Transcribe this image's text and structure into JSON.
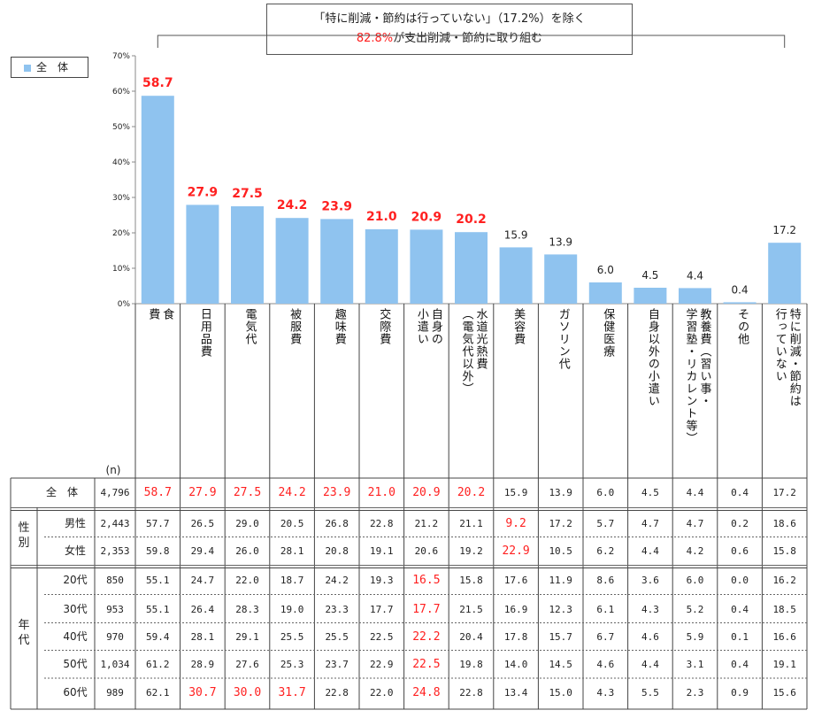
{
  "callout": {
    "line1": "「特に削減・節約は行っていない」（17.2%）を除く",
    "line2_red": "82.8%",
    "line2_rest": "が支出削減・節約に取り組む"
  },
  "legend": {
    "label": "全　体"
  },
  "colors": {
    "bar": "#8fc3ef",
    "bar_edge": "#6aaee6",
    "highlight": "#ff2020",
    "text": "#222222"
  },
  "chart_data": {
    "type": "bar",
    "categories": [
      "食費",
      "日用品費",
      "電気代",
      "被服費",
      "趣味費",
      "交際費",
      "自身の小遣い",
      "水道光熱費（電気代以外）",
      "美容費",
      "ガソリン代",
      "保健医療",
      "自身以外の小遣い",
      "教養費（習い事・学習塾・リカレント等）",
      "その他",
      "特に削減・節約は行っていない"
    ],
    "category_lines": [
      [
        "食",
        "費"
      ],
      [
        "日用品費"
      ],
      [
        "電気代"
      ],
      [
        "被服費"
      ],
      [
        "趣味費"
      ],
      [
        "交際費"
      ],
      [
        "自身の",
        "小遣い"
      ],
      [
        "水道光熱費",
        "（電気代以外）"
      ],
      [
        "美容費"
      ],
      [
        "ガソリン代"
      ],
      [
        "保健医療"
      ],
      [
        "自身以外の小遣い"
      ],
      [
        "教養費（習い事・",
        "学習塾・リカレント等）"
      ],
      [
        "その他"
      ],
      [
        "特に削減・節約は",
        "行っていない"
      ]
    ],
    "series": [
      {
        "values": [
          58.7,
          27.9,
          27.5,
          24.2,
          23.9,
          21.0,
          20.9,
          20.2,
          15.9,
          13.9,
          6.0,
          4.5,
          4.4,
          0.4,
          17.2
        ]
      }
    ],
    "value_labels": [
      "58.7",
      "27.9",
      "27.5",
      "24.2",
      "23.9",
      "21.0",
      "20.9",
      "20.2",
      "15.9",
      "13.9",
      "6.0",
      "4.5",
      "4.4",
      "0.4",
      "17.2"
    ],
    "highlight_top": 8,
    "ylim": [
      0,
      70
    ],
    "yticks": [
      "0%",
      "10%",
      "20%",
      "30%",
      "40%",
      "50%",
      "60%",
      "70%"
    ],
    "grid": false
  },
  "table": {
    "n_header": "(n)",
    "rows": [
      {
        "group": "",
        "label": "全　体",
        "n": "4,796",
        "values": [
          "58.7",
          "27.9",
          "27.5",
          "24.2",
          "23.9",
          "21.0",
          "20.9",
          "20.2",
          "15.9",
          "13.9",
          "6.0",
          "4.5",
          "4.4",
          "0.4",
          "17.2"
        ],
        "red": [
          0,
          1,
          2,
          3,
          4,
          5,
          6,
          7
        ]
      },
      {
        "group": "性別",
        "label": "男性",
        "n": "2,443",
        "values": [
          "57.7",
          "26.5",
          "29.0",
          "20.5",
          "26.8",
          "22.8",
          "21.2",
          "21.1",
          "9.2",
          "17.2",
          "5.7",
          "4.7",
          "4.7",
          "0.2",
          "18.6"
        ],
        "red": [
          8
        ]
      },
      {
        "group": "性別",
        "label": "女性",
        "n": "2,353",
        "values": [
          "59.8",
          "29.4",
          "26.0",
          "28.1",
          "20.8",
          "19.1",
          "20.6",
          "19.2",
          "22.9",
          "10.5",
          "6.2",
          "4.4",
          "4.2",
          "0.6",
          "15.8"
        ],
        "red": [
          8
        ]
      },
      {
        "group": "年代",
        "label": "20代",
        "n": "850",
        "values": [
          "55.1",
          "24.7",
          "22.0",
          "18.7",
          "24.2",
          "19.3",
          "16.5",
          "15.8",
          "17.6",
          "11.9",
          "8.6",
          "3.6",
          "6.0",
          "0.0",
          "16.2"
        ],
        "red": [
          6
        ]
      },
      {
        "group": "年代",
        "label": "30代",
        "n": "953",
        "values": [
          "55.1",
          "26.4",
          "28.3",
          "19.0",
          "23.3",
          "17.7",
          "17.7",
          "21.5",
          "16.9",
          "12.3",
          "6.1",
          "4.3",
          "5.2",
          "0.4",
          "18.5"
        ],
        "red": [
          6
        ]
      },
      {
        "group": "年代",
        "label": "40代",
        "n": "970",
        "values": [
          "59.4",
          "28.1",
          "29.1",
          "25.5",
          "25.5",
          "22.5",
          "22.2",
          "20.4",
          "17.8",
          "15.7",
          "6.7",
          "4.6",
          "5.9",
          "0.1",
          "16.6"
        ],
        "red": [
          6
        ]
      },
      {
        "group": "年代",
        "label": "50代",
        "n": "1,034",
        "values": [
          "61.2",
          "28.9",
          "27.6",
          "25.3",
          "23.7",
          "22.9",
          "22.5",
          "19.8",
          "14.0",
          "14.5",
          "4.6",
          "4.4",
          "3.1",
          "0.4",
          "19.1"
        ],
        "red": [
          6
        ]
      },
      {
        "group": "年代",
        "label": "60代",
        "n": "989",
        "values": [
          "62.1",
          "30.7",
          "30.0",
          "31.7",
          "22.8",
          "22.0",
          "24.8",
          "22.8",
          "13.4",
          "15.0",
          "4.3",
          "5.5",
          "2.3",
          "0.9",
          "15.6"
        ],
        "red": [
          1,
          2,
          3,
          6
        ]
      }
    ],
    "group_labels": {
      "gender": "性\n別",
      "age": "年\n代"
    }
  }
}
